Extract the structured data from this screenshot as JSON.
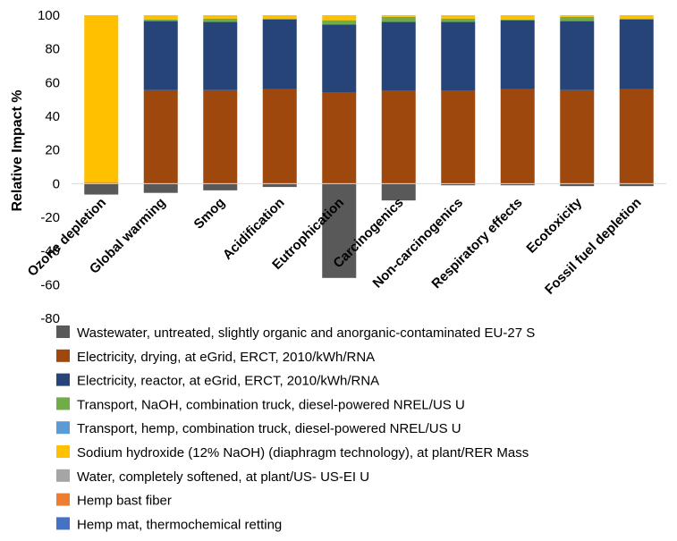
{
  "chart_data": {
    "type": "bar",
    "stacked": true,
    "ylabel": "Relative Impact %",
    "xlabel": "",
    "ylim": [
      -80,
      100
    ],
    "yticks": [
      -80,
      -60,
      -40,
      -20,
      0,
      20,
      40,
      60,
      80,
      100
    ],
    "grid": false,
    "legend_position": "bottom",
    "categories": [
      "Ozone depletion",
      "Global warming",
      "Smog",
      "Acidification",
      "Eutrophication",
      "Carcinogenics",
      "Non-carcinogenics",
      "Respiratory effects",
      "Ecotoxicity",
      "Fossil fuel depletion"
    ],
    "series": [
      {
        "name": "Wastewater, untreated, slightly organic and anorganic-contaminated EU-27 S",
        "color": "#595959",
        "values": [
          -6.5,
          -5.5,
          -4,
          -2,
          -56,
          -10,
          -1,
          -1,
          -1.5,
          -1.5
        ]
      },
      {
        "name": "Electricity, drying, at eGrid, ERCT, 2010/kWh/RNA",
        "color": "#9e480e",
        "values": [
          0.5,
          55.5,
          55.5,
          56,
          54,
          55,
          55,
          56,
          55.5,
          56
        ]
      },
      {
        "name": "Electricity, reactor, at eGrid, ERCT, 2010/kWh/RNA",
        "color": "#264478",
        "values": [
          0,
          41,
          40.5,
          41.5,
          40.5,
          41,
          41,
          41,
          41,
          41.5
        ]
      },
      {
        "name": "Transport, NaOH, combination truck, diesel-powered NREL/US U",
        "color": "#70ad47",
        "values": [
          0,
          1,
          2,
          0.5,
          2.5,
          3,
          2,
          0.5,
          2.5,
          0.5
        ]
      },
      {
        "name": "Transport, hemp, combination truck, diesel-powered NREL/US U",
        "color": "#5b9bd5",
        "values": [
          0,
          0,
          0,
          0,
          0,
          0,
          0,
          0,
          0,
          0
        ]
      },
      {
        "name": "Sodium hydroxide (12% NaOH) (diaphragm technology), at plant/RER Mass",
        "color": "#ffc000",
        "values": [
          99.5,
          2.5,
          2,
          2,
          3,
          1,
          2,
          2.5,
          1,
          2
        ]
      },
      {
        "name": "Water, completely softened, at plant/US- US-EI U",
        "color": "#a5a5a5",
        "values": [
          0,
          0,
          0,
          0,
          0,
          0,
          0,
          0,
          0,
          0
        ]
      },
      {
        "name": "Hemp bast fiber",
        "color": "#ed7d31",
        "values": [
          0,
          0,
          0,
          0,
          0,
          0,
          0,
          0,
          0,
          0
        ]
      },
      {
        "name": "Hemp mat, thermochemical retting",
        "color": "#4472c4",
        "values": [
          0,
          0,
          0,
          0,
          0,
          0,
          0,
          0,
          0,
          0
        ]
      }
    ]
  }
}
